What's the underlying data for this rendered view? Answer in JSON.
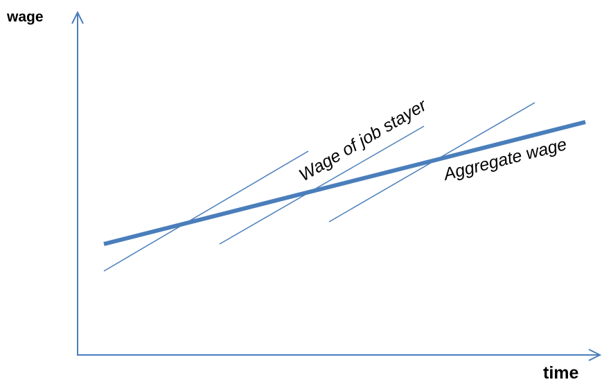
{
  "axes": {
    "y_label": "wage",
    "x_label": "time"
  },
  "annotations": {
    "job_stayer": "Wage of job stayer",
    "aggregate": "Aggregate wage"
  }
}
